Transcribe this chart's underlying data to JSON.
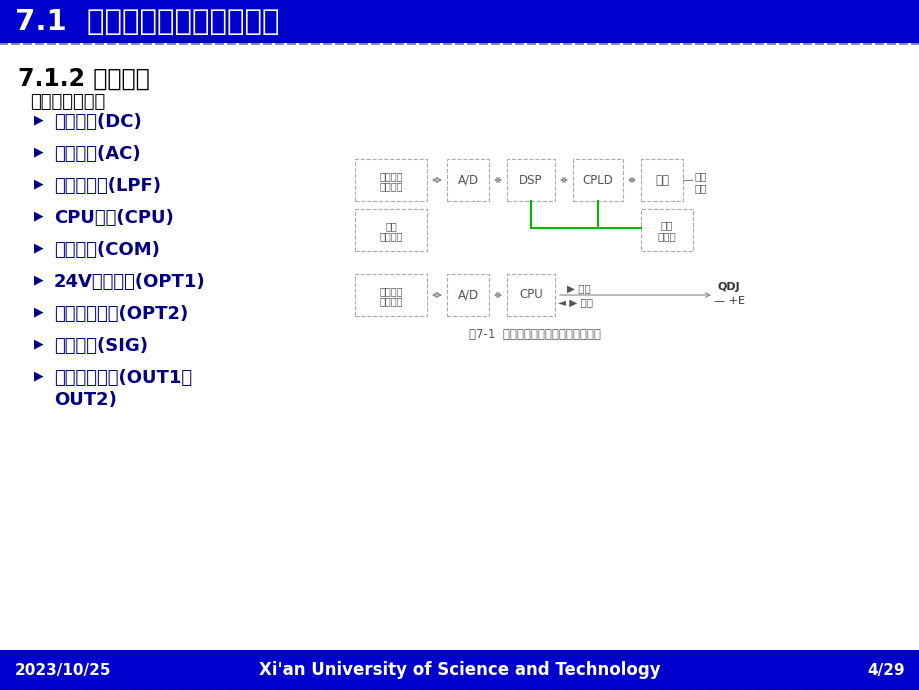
{
  "title": "7.1  超高压线路成套保护装置",
  "subtitle": "7.1.2 硬件原理",
  "bg_color": "#FFFFFF",
  "header_bg": "#0000CC",
  "header_text_color": "#FFFFFF",
  "footer_bg": "#0000CC",
  "footer_text_color": "#FFFFFF",
  "footer_left": "2023/10/25",
  "footer_center": "Xi'an University of Science and Technology",
  "footer_right": "4/29",
  "intro_text": "成套保护插件：",
  "bullet_items": [
    "电源插件(DC)",
    "交流插件(AC)",
    "低通滤波器(LPF)",
    "CPU插件(CPU)",
    "通信插件(COM)",
    "24V光耦插件(OPT1)",
    "高压光耦插件(OPT2)",
    "信号插件(SIG)",
    "跳闸出口插件(OUT1、\nOUT2)"
  ],
  "diagram_caption": "图7-1  超高压线路成套保护硬件模块图",
  "box_top_1_label": [
    "由低通滤",
    "波插件来"
  ],
  "box_top_2_label": "A/D",
  "box_top_3_label": "DSP",
  "box_top_4_label": "CPLD",
  "box_top_5_label": "光隔",
  "label_waibukaru": "外部\n开入",
  "box_mid_1_label": [
    "电源",
    "液晶显示"
  ],
  "box_mid_2_label": [
    "出口",
    "继电器"
  ],
  "box_bot_1_label": [
    "由低通滤",
    "波插件来"
  ],
  "box_bot_2_label": "A/D",
  "box_bot_3_label": "CPU",
  "label_print": "▶ 打印",
  "label_port": "◄ ▶ 出口",
  "label_qdj": "QDJ",
  "label_plus_e": "— +E"
}
